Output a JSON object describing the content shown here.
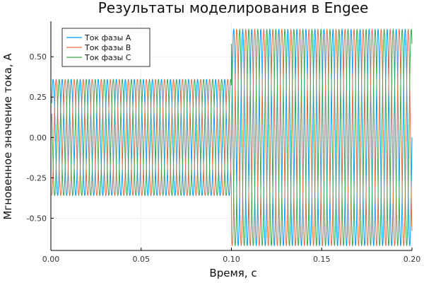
{
  "chart_data": {
    "type": "line",
    "title": "Результаты моделирования в Engee",
    "xlabel": "Время, с",
    "ylabel": "Мгновенное значение тока, А",
    "xlim": [
      0,
      0.2
    ],
    "ylim": [
      -0.7,
      0.72
    ],
    "xticks": [
      0.0,
      0.05,
      0.1,
      0.15,
      0.2
    ],
    "xtick_labels": [
      "0.00",
      "0.05",
      "0.10",
      "0.15",
      "0.20"
    ],
    "yticks": [
      -0.5,
      -0.25,
      0.0,
      0.25,
      0.5
    ],
    "ytick_labels": [
      "-0.50",
      "-0.25",
      "0.00",
      "0.25",
      "0.50"
    ],
    "grid": true,
    "legend_position": "top-left",
    "frequency_hz": 200,
    "step_time": 0.1,
    "series": [
      {
        "name": "Ток фазы A",
        "color": "#009af9",
        "phase_deg": 0,
        "amplitude_before": 0.36,
        "amplitude_after": 0.67
      },
      {
        "name": "Ток фазы B",
        "color": "#e26f46",
        "phase_deg": -120,
        "amplitude_before": 0.36,
        "amplitude_after": 0.67
      },
      {
        "name": "Ток фазы C",
        "color": "#3da44d",
        "phase_deg": 120,
        "amplitude_before": 0.36,
        "amplitude_after": 0.67
      }
    ]
  }
}
